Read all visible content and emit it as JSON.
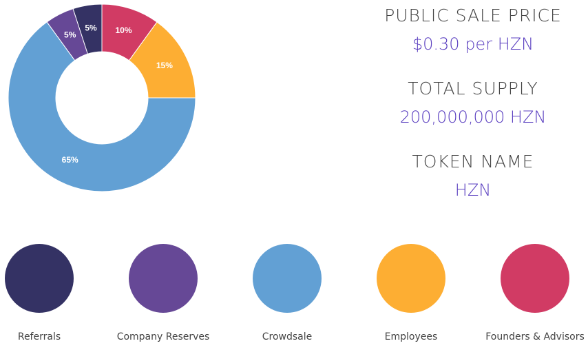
{
  "chart_data": {
    "type": "pie",
    "categories": [
      "Referrals",
      "Company Reserves",
      "Crowdsale",
      "Employees",
      "Founders & Advisors"
    ],
    "values": [
      5,
      5,
      65,
      15,
      10
    ],
    "value_labels": [
      "5%",
      "5%",
      "65%",
      "15%",
      "10%"
    ],
    "colors": [
      "#343264",
      "#664896",
      "#62a0d4",
      "#fdae33",
      "#d13b64"
    ]
  },
  "info": [
    {
      "label": "PUBLIC SALE PRICE",
      "value": "$0.30 per HZN"
    },
    {
      "label": "TOTAL SUPPLY",
      "value": "200,000,000 HZN"
    },
    {
      "label": "TOKEN NAME",
      "value": "HZN"
    }
  ]
}
